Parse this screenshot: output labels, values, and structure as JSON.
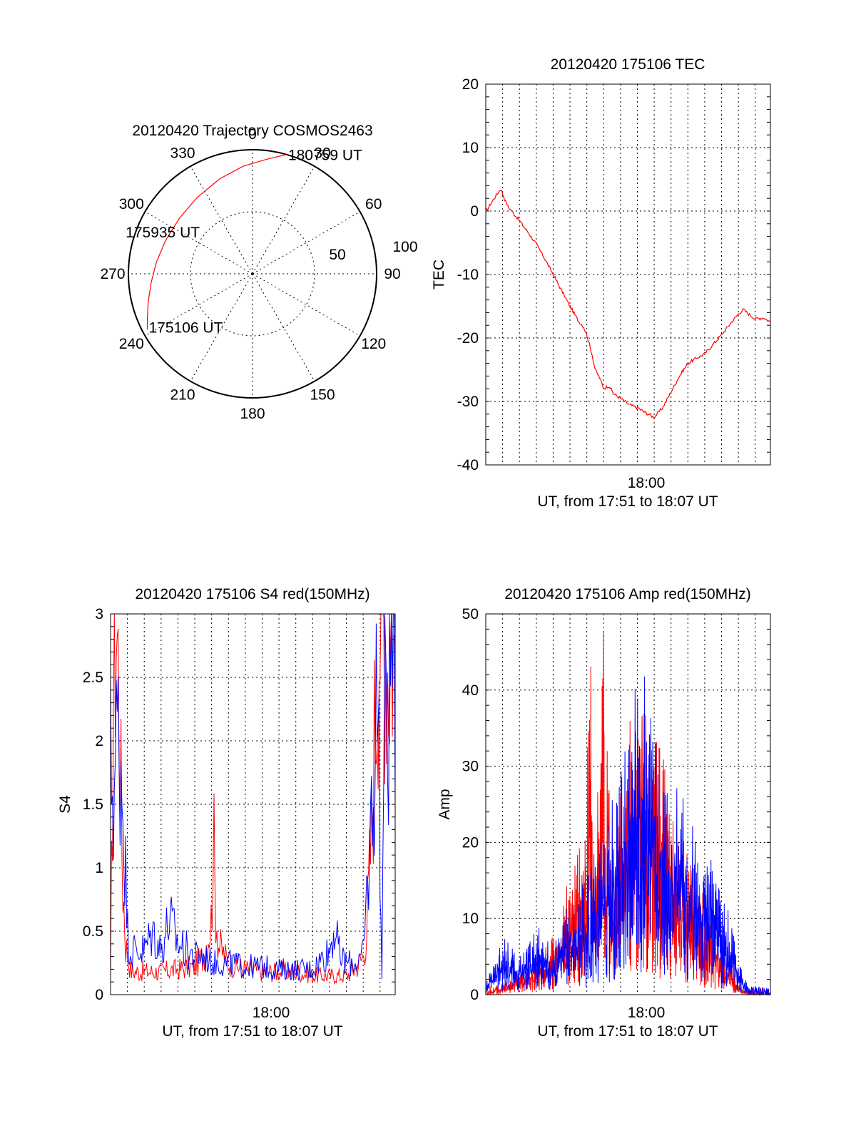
{
  "chart_data": [
    {
      "type": "polar",
      "title": "20120420 Trajectory COSMOS2463",
      "azimuth_labels": [
        "0",
        "30",
        "60",
        "90",
        "120",
        "150",
        "180",
        "210",
        "240",
        "270",
        "300",
        "330"
      ],
      "azimuth_values": [
        0,
        30,
        60,
        90,
        120,
        150,
        180,
        210,
        240,
        270,
        300,
        330
      ],
      "radius_labels": [
        "50",
        "100"
      ],
      "radius_values": [
        50,
        100
      ],
      "rlim": [
        0,
        100
      ],
      "grid": true,
      "trajectory": {
        "color": "#ff0000",
        "points": [
          {
            "az": 242,
            "zen": 96
          },
          {
            "az": 247,
            "zen": 92
          },
          {
            "az": 255,
            "zen": 87
          },
          {
            "az": 265,
            "zen": 82
          },
          {
            "az": 277,
            "zen": 78
          },
          {
            "az": 291,
            "zen": 75
          },
          {
            "az": 307,
            "zen": 74
          },
          {
            "az": 324,
            "zen": 76
          },
          {
            "az": 341,
            "zen": 81
          },
          {
            "az": 355,
            "zen": 87
          },
          {
            "az": 7,
            "zen": 93
          },
          {
            "az": 16,
            "zen": 100
          }
        ]
      },
      "annotations": [
        {
          "text": "175106 UT",
          "az": 242,
          "zen": 96
        },
        {
          "text": "175935 UT",
          "az": 291,
          "zen": 75
        },
        {
          "text": "180759 UT",
          "az": 16,
          "zen": 100
        }
      ]
    },
    {
      "type": "line",
      "title": "20120420 175106 TEC",
      "ylabel": "TEC",
      "xlabel": "UT, from 17:51 to 18:07 UT",
      "ylim": [
        -40,
        20
      ],
      "yticks": [
        20,
        10,
        0,
        -10,
        -20,
        -30,
        -40
      ],
      "xlim_min": [
        0,
        16.9
      ],
      "x_tick_label": {
        "min": 9,
        "label": "18:00"
      },
      "grid": true,
      "series": [
        {
          "color": "#ff0000",
          "x": [
            0,
            0.15,
            0.3,
            0.5,
            0.7,
            0.9,
            1.1,
            1.3,
            1.6,
            2,
            2.5,
            3,
            3.5,
            4,
            4.5,
            5,
            5.5,
            5.8,
            6,
            6.1,
            6.3,
            6.5,
            6.8,
            7,
            7.3,
            7.6,
            8,
            8.5,
            9,
            9.5,
            10,
            10.5,
            11,
            11.5,
            12,
            12.5,
            13,
            13.5,
            14,
            14.5,
            15,
            15.3,
            15.5,
            16,
            16.5,
            16.9
          ],
          "y": [
            0,
            0.5,
            1.2,
            2,
            2.8,
            3.5,
            2,
            0.8,
            -0.2,
            -1.5,
            -3.3,
            -5.2,
            -7.5,
            -10,
            -12.5,
            -15,
            -17.3,
            -18.2,
            -19.5,
            -20.5,
            -22.5,
            -25,
            -26.5,
            -28,
            -27.5,
            -28.8,
            -29.5,
            -30.5,
            -31,
            -31.8,
            -32.5,
            -31,
            -28.5,
            -26,
            -24,
            -23.2,
            -22.5,
            -21,
            -19.5,
            -17.8,
            -16.2,
            -15.5,
            -16,
            -17,
            -16.8,
            -17.5
          ]
        }
      ]
    },
    {
      "type": "line",
      "title": "20120420 175106 S4 red(150MHz)",
      "ylabel": "S4",
      "xlabel": "UT, from 17:51 to 18:07 UT",
      "ylim": [
        0,
        3
      ],
      "yticks": [
        "3",
        "2.5",
        "2",
        "1.5",
        "1",
        "0.5",
        "0"
      ],
      "xlim_min": [
        0,
        16.9
      ],
      "x_tick_label": {
        "min": 9,
        "label": "18:00"
      },
      "grid": true,
      "series": [
        {
          "color": "#ff0000",
          "x": [
            0,
            0.2,
            0.35,
            0.5,
            0.7,
            0.9,
            1.2,
            2,
            3,
            4,
            5,
            5.5,
            6,
            6.1,
            6.2,
            6.4,
            7,
            8,
            9,
            10,
            11,
            12,
            13,
            14,
            14.5,
            15,
            15.2,
            15.5,
            15.7,
            15.9,
            16.1,
            16.3,
            16.5,
            16.7,
            16.9
          ],
          "y": [
            0.05,
            3.0,
            3.0,
            2.4,
            1.0,
            0.4,
            0.18,
            0.18,
            0.18,
            0.2,
            0.22,
            0.3,
            0.6,
            1.35,
            0.8,
            0.4,
            0.25,
            0.2,
            0.18,
            0.18,
            0.18,
            0.15,
            0.15,
            0.15,
            0.2,
            0.3,
            0.5,
            1.3,
            2.2,
            3.0,
            3.0,
            3.0,
            2.6,
            3.0,
            2.4
          ]
        },
        {
          "color": "#0000ff",
          "x": [
            0,
            0.2,
            0.4,
            0.6,
            0.8,
            1.0,
            1.2,
            2,
            2.5,
            3,
            3.5,
            4,
            4.5,
            5,
            5.5,
            6,
            7,
            8,
            9,
            10,
            11,
            12,
            12.5,
            13,
            13.3,
            13.6,
            14,
            14.5,
            15,
            15.5,
            15.7,
            15.9,
            16.1,
            16.3,
            16.5,
            16.7,
            16.9
          ],
          "y": [
            1.8,
            1.6,
            2.1,
            1.9,
            1.4,
            0.5,
            0.35,
            0.35,
            0.5,
            0.35,
            0.6,
            0.4,
            0.35,
            0.3,
            0.3,
            0.25,
            0.25,
            0.22,
            0.22,
            0.2,
            0.2,
            0.2,
            0.28,
            0.35,
            0.55,
            0.3,
            0.25,
            0.25,
            0.3,
            1.4,
            2.0,
            2.5,
            0.0,
            2.8,
            2.2,
            3.0,
            2.5
          ]
        }
      ]
    },
    {
      "type": "line",
      "title": "20120420 175106 Amp red(150MHz)",
      "ylabel": "Amp",
      "xlabel": "UT, from 17:51 to 18:07 UT",
      "ylim": [
        0,
        50
      ],
      "yticks": [
        50,
        40,
        30,
        20,
        10,
        0
      ],
      "xlim_min": [
        0,
        16.9
      ],
      "x_tick_label": {
        "min": 9,
        "label": "18:00"
      },
      "grid": true,
      "series": [
        {
          "color": "#ff0000",
          "x": [
            0,
            1,
            2,
            3,
            4,
            4.5,
            5,
            5.5,
            6,
            6.2,
            6.3,
            6.5,
            7,
            7.5,
            8,
            8.5,
            9,
            9.5,
            10,
            10.5,
            11,
            11.5,
            12,
            12.5,
            13,
            13.5,
            14,
            14.5,
            15,
            15.5,
            16,
            16.9
          ],
          "y": [
            0.5,
            1,
            2,
            3,
            5,
            8,
            10,
            12,
            15,
            41,
            15,
            12,
            32,
            14,
            18,
            22,
            28,
            25,
            22,
            20,
            16,
            14,
            12,
            10,
            9,
            7,
            5,
            3,
            1,
            0.5,
            0.3,
            0.2
          ]
        },
        {
          "color": "#0000ff",
          "x": [
            0,
            1,
            2,
            3,
            4,
            4.5,
            5,
            5.5,
            6,
            6.5,
            7,
            7.5,
            8,
            8.5,
            9,
            9.5,
            10,
            10.5,
            11,
            11.5,
            12,
            12.5,
            13,
            13.5,
            14,
            14.5,
            15,
            15.5,
            16,
            16.9
          ],
          "y": [
            1,
            5,
            3,
            6,
            4,
            6,
            8,
            9,
            10,
            12,
            14,
            16,
            20,
            24,
            28,
            26,
            22,
            19,
            18,
            17,
            15,
            14,
            12,
            11,
            8,
            7,
            3,
            1,
            0.5,
            0.5
          ]
        }
      ]
    }
  ]
}
